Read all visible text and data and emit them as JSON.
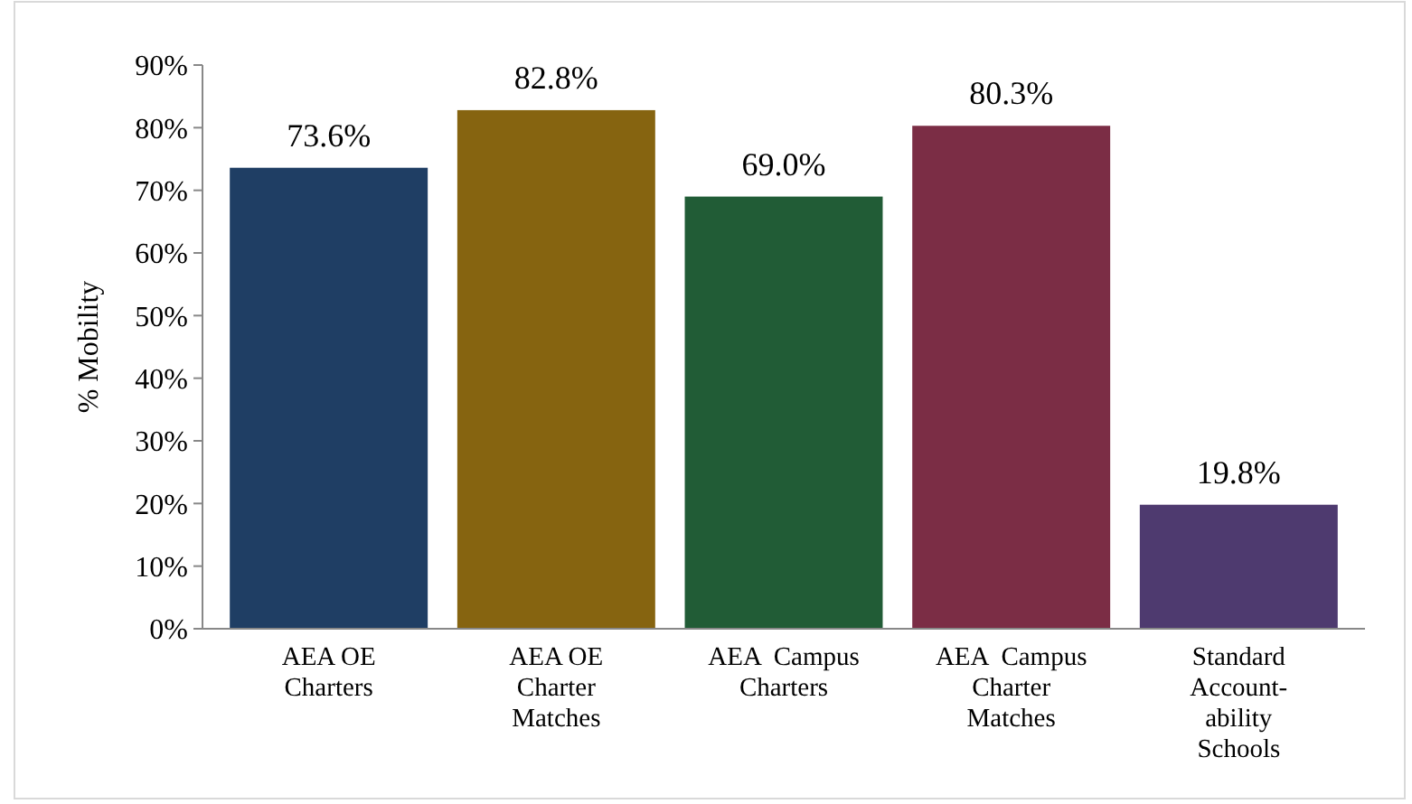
{
  "chart_data": {
    "type": "bar",
    "ylabel": "% Mobility",
    "categories": [
      "AEA OE\nCharters",
      "AEA OE\nCharter\nMatches",
      "AEA  Campus\nCharters",
      "AEA  Campus\nCharter\nMatches",
      "Standard\nAccount-\nability\nSchools"
    ],
    "values": [
      73.6,
      82.8,
      69.0,
      80.3,
      19.8
    ],
    "colors": [
      "#1f3e64",
      "#866410",
      "#215c36",
      "#7b2d45",
      "#4e3a6f"
    ],
    "ylim": [
      0,
      90
    ],
    "yticks": [
      {
        "value": 0,
        "label": "0%"
      },
      {
        "value": 10,
        "label": "10%"
      },
      {
        "value": 20,
        "label": "20%"
      },
      {
        "value": 30,
        "label": "30%"
      },
      {
        "value": 40,
        "label": "40%"
      },
      {
        "value": 50,
        "label": "50%"
      },
      {
        "value": 60,
        "label": "60%"
      },
      {
        "value": 70,
        "label": "70%"
      },
      {
        "value": 80,
        "label": "80%"
      },
      {
        "value": 90,
        "label": "90%"
      }
    ],
    "value_labels": [
      "73.6%",
      "82.8%",
      "69.0%",
      "80.3%",
      "19.8%"
    ],
    "grid": false
  }
}
